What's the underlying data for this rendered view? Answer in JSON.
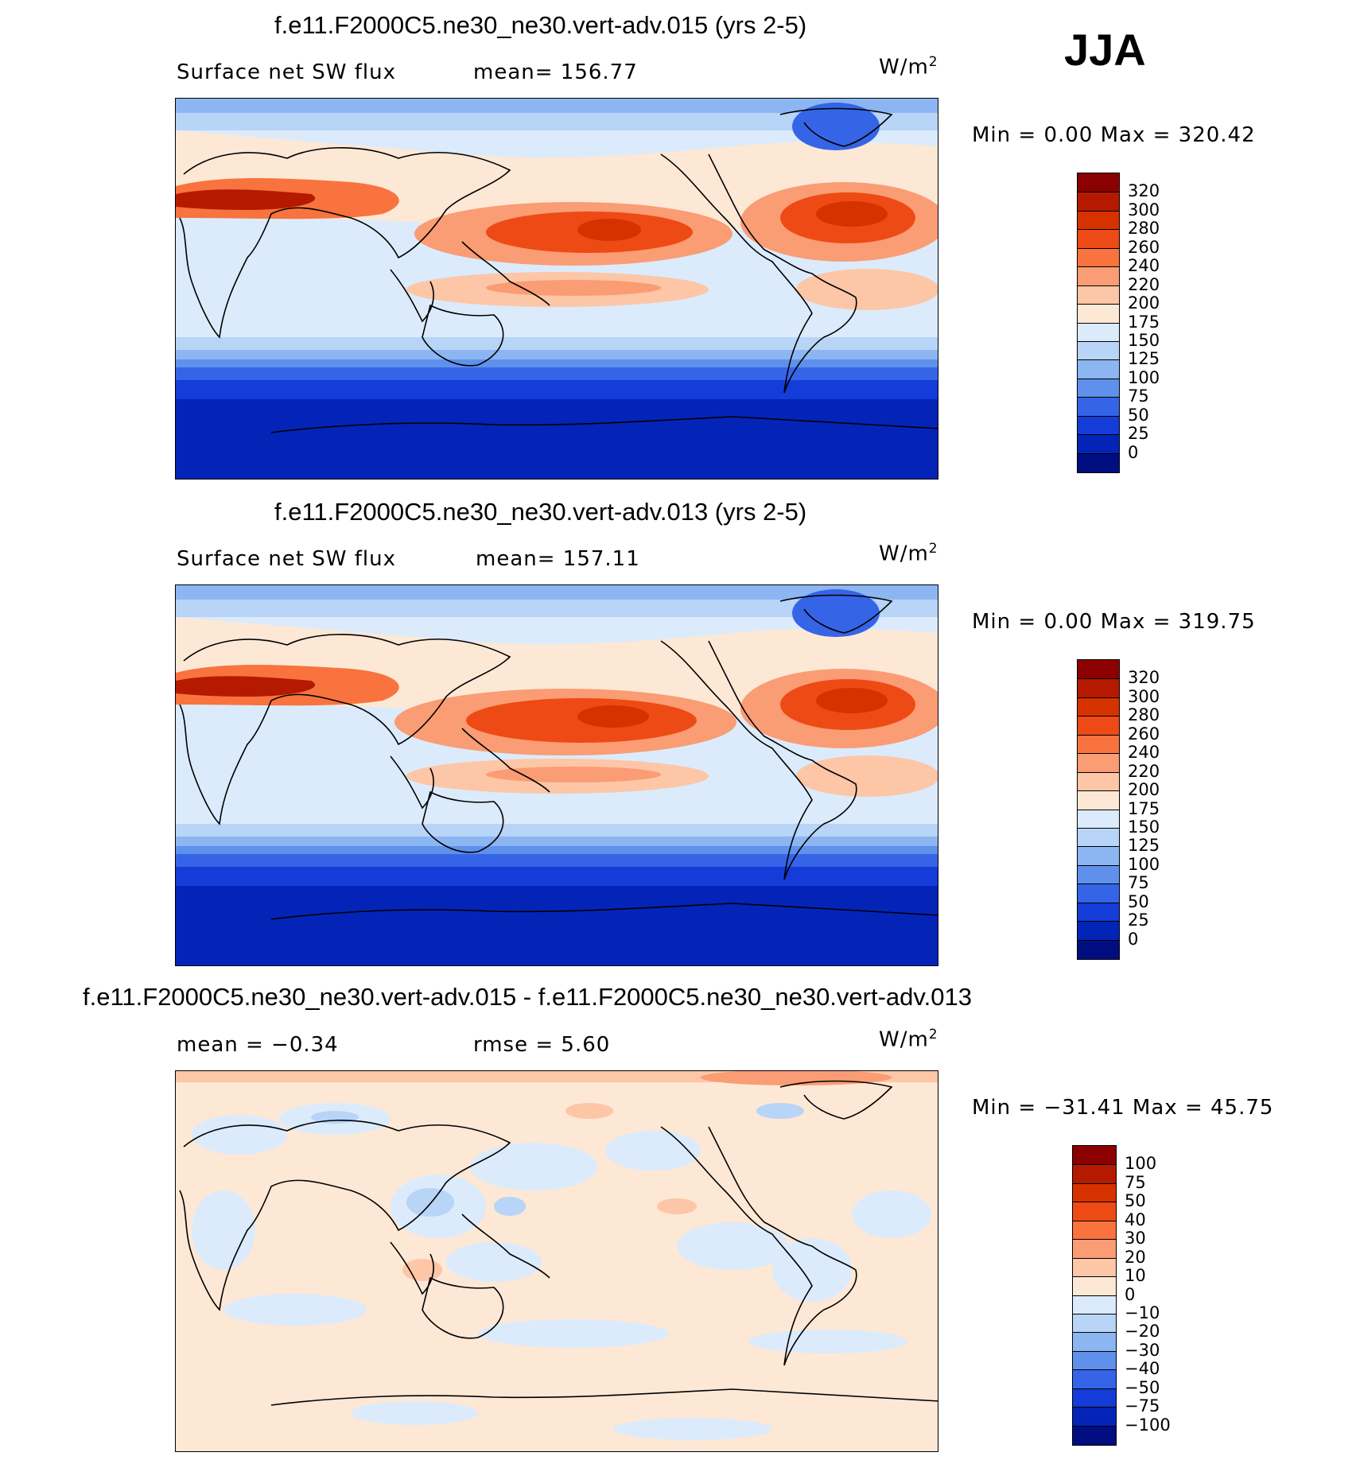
{
  "season_label": "JJA",
  "panels": [
    {
      "id": "top",
      "title": "f.e11.F2000C5.ne30_ne30.vert-adv.015 (yrs 2-5)",
      "left_label": "Surface net SW flux",
      "stat1": "mean=  156.77",
      "stat2": "",
      "units_base": "W/m",
      "units_exp": "2",
      "minmax": "Min =    0.00  Max  =  320.42",
      "colorbar_labels": [
        "320",
        "300",
        "280",
        "260",
        "240",
        "220",
        "200",
        "175",
        "150",
        "125",
        "100",
        "75",
        "50",
        "25",
        "0"
      ],
      "colorbar_colors": [
        "#8b0000",
        "#b51a00",
        "#d63200",
        "#ee4a15",
        "#f8733e",
        "#fa9c74",
        "#fdc6a6",
        "#fde8d6",
        "#dbebfb",
        "#b8d4f7",
        "#8cb6f2",
        "#5f91ec",
        "#3565e6",
        "#143cd8",
        "#0424b8",
        "#000e82"
      ]
    },
    {
      "id": "middle",
      "title": "f.e11.F2000C5.ne30_ne30.vert-adv.013 (yrs 2-5)",
      "left_label": "Surface net SW flux",
      "stat1": "mean=  157.11",
      "stat2": "",
      "units_base": "W/m",
      "units_exp": "2",
      "minmax": "Min =    0.00  Max  =  319.75",
      "colorbar_labels": [
        "320",
        "300",
        "280",
        "260",
        "240",
        "220",
        "200",
        "175",
        "150",
        "125",
        "100",
        "75",
        "50",
        "25",
        "0"
      ],
      "colorbar_colors": [
        "#8b0000",
        "#b51a00",
        "#d63200",
        "#ee4a15",
        "#f8733e",
        "#fa9c74",
        "#fdc6a6",
        "#fde8d6",
        "#dbebfb",
        "#b8d4f7",
        "#8cb6f2",
        "#5f91ec",
        "#3565e6",
        "#143cd8",
        "#0424b8",
        "#000e82"
      ]
    },
    {
      "id": "bottom",
      "title": "f.e11.F2000C5.ne30_ne30.vert-adv.015 - f.e11.F2000C5.ne30_ne30.vert-adv.013",
      "left_label": "mean =   −0.34",
      "stat1": "rmse =     5.60",
      "stat2": "",
      "units_base": "W/m",
      "units_exp": "2",
      "minmax": "Min = −31.41  Max  =   45.75",
      "colorbar_labels": [
        "100",
        "75",
        "50",
        "40",
        "30",
        "20",
        "10",
        "0",
        "−10",
        "−20",
        "−30",
        "−40",
        "−50",
        "−75",
        "−100"
      ],
      "colorbar_colors": [
        "#8b0000",
        "#b51a00",
        "#d63200",
        "#ee4a15",
        "#f8733e",
        "#fa9c74",
        "#fdc6a6",
        "#fde8d6",
        "#dbebfb",
        "#b8d4f7",
        "#8cb6f2",
        "#5f91ec",
        "#3565e6",
        "#143cd8",
        "#0424b8",
        "#000e82"
      ]
    }
  ]
}
